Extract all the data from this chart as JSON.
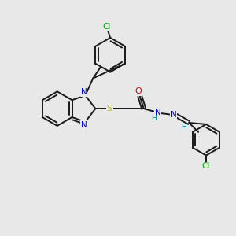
{
  "background_color": "#e8e8e8",
  "bond_color": "#1a1a1a",
  "atom_colors": {
    "N": "#0000dd",
    "O": "#dd0000",
    "S": "#bbbb00",
    "Cl": "#00aa00",
    "H": "#008080",
    "C": "#1a1a1a"
  },
  "figsize": [
    3.0,
    3.0
  ],
  "dpi": 100
}
